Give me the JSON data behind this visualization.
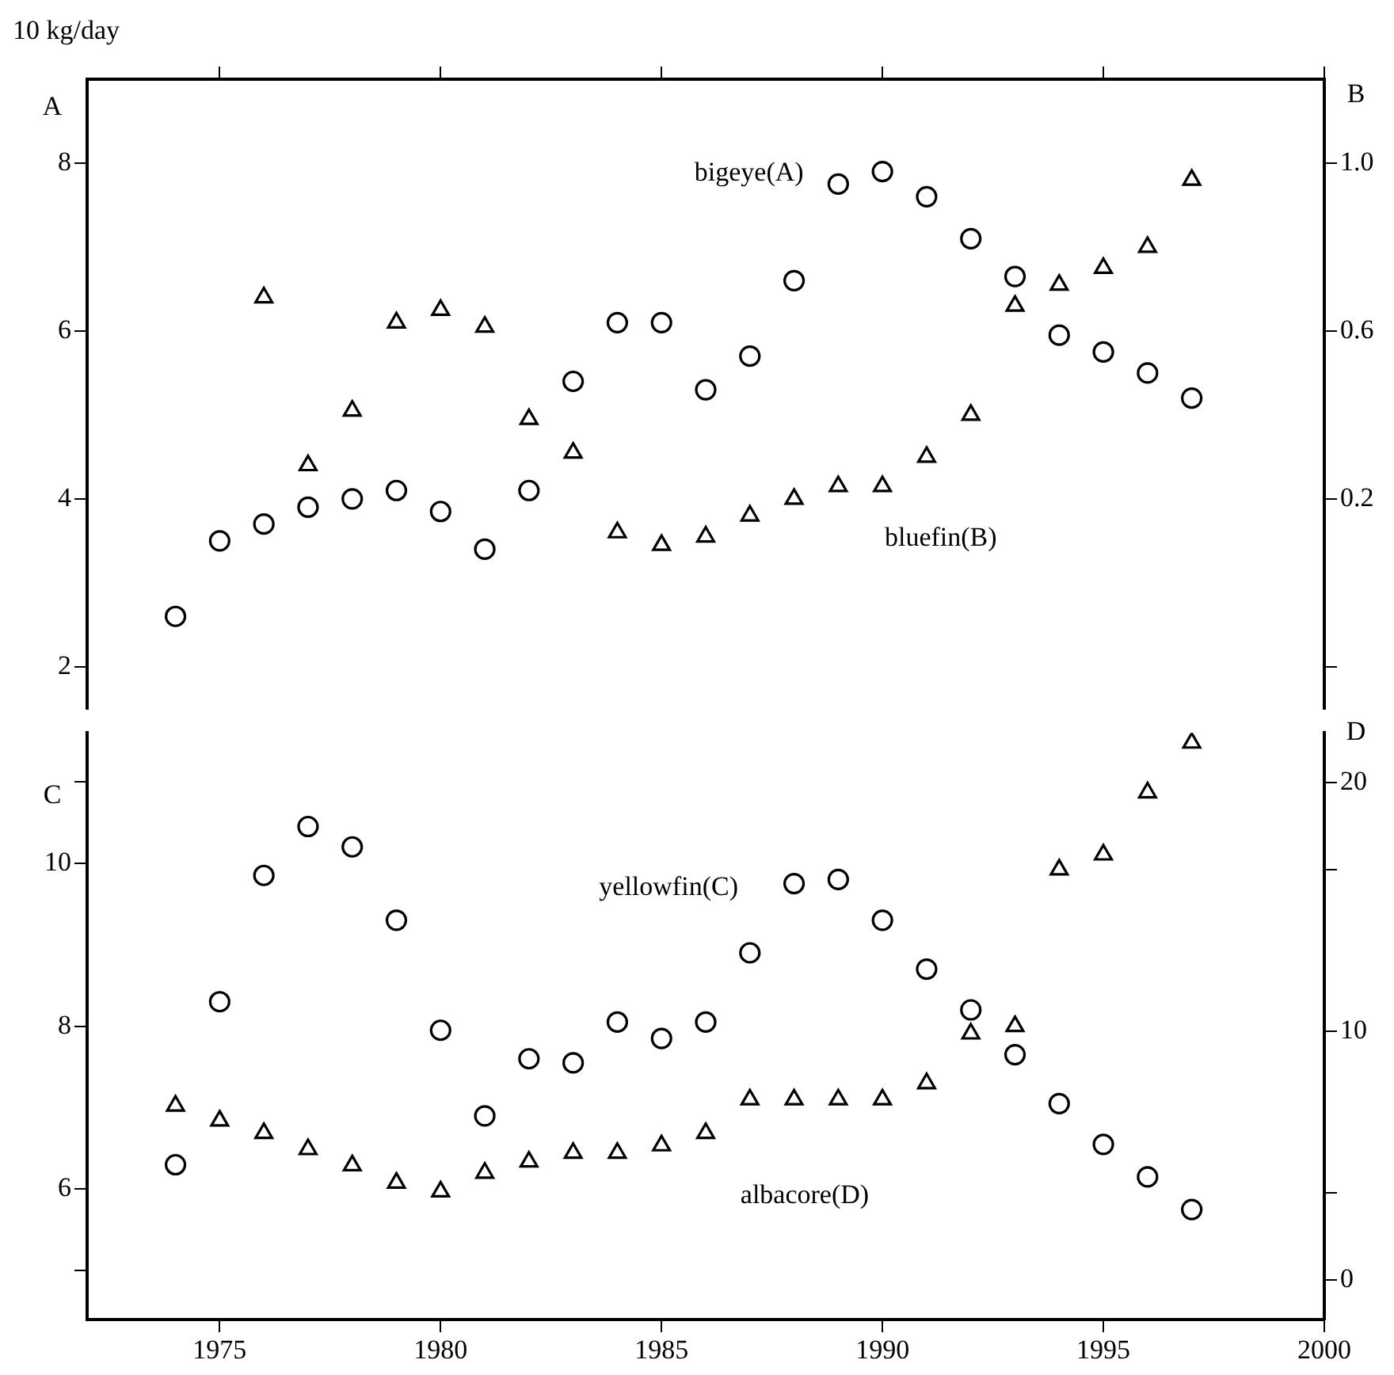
{
  "chart_data": [
    {
      "type": "scatter",
      "title": "10 kg/day",
      "ylabel": "A",
      "y2label": "B",
      "tick_labels": "y",
      "x": [
        1974,
        1975,
        1976,
        1977,
        1978,
        1979,
        1980,
        1981,
        1982,
        1983,
        1984,
        1985,
        1986,
        1987,
        1988,
        1989,
        1990,
        1991,
        1992,
        1993,
        1994,
        1995,
        1996,
        1997
      ],
      "xlim": [
        1972,
        2000
      ],
      "xticks": [
        1975,
        1980,
        1985,
        1990,
        1995,
        2000
      ],
      "ylim": [
        1.5,
        9
      ],
      "yticks": [
        2,
        4,
        6,
        8
      ],
      "y2lim": [
        -0.3,
        1.2
      ],
      "y2ticks": [
        {
          "value": -0.2,
          "label": null
        },
        0.2,
        0.6,
        {
          "value": 1,
          "label": "1.0"
        }
      ],
      "series": [
        {
          "name": "bigeye(A)",
          "color": "#000000",
          "marker": "circle",
          "values": [
            2.6,
            3.5,
            3.7,
            3.9,
            4.0,
            4.1,
            3.85,
            3.4,
            4.1,
            5.4,
            6.1,
            6.1,
            5.3,
            5.7,
            6.6,
            7.75,
            7.9,
            7.6,
            7.1,
            6.65,
            5.95,
            5.75,
            5.5,
            5.2
          ]
        },
        {
          "name": "bluefin(B)",
          "color": "#000000",
          "marker": "triangle",
          "axis": "y2",
          "values": [
            null,
            null,
            0.68,
            0.28,
            0.41,
            0.62,
            0.65,
            0.61,
            0.39,
            0.31,
            0.12,
            0.09,
            0.11,
            0.16,
            0.2,
            0.23,
            0.23,
            0.3,
            0.4,
            0.66,
            0.71,
            0.75,
            0.8,
            0.96
          ]
        }
      ]
    },
    {
      "type": "scatter",
      "ylabel": "C",
      "y2label": "D",
      "x": [
        1974,
        1975,
        1976,
        1977,
        1978,
        1979,
        1980,
        1981,
        1982,
        1983,
        1984,
        1985,
        1986,
        1987,
        1988,
        1989,
        1990,
        1991,
        1992,
        1993,
        1994,
        1995,
        1996,
        1997
      ],
      "xlim": [
        1972,
        2000
      ],
      "xticks": [
        1975,
        1980,
        1985,
        1990,
        1995,
        2000
      ],
      "ylim": [
        4.4,
        11.6
      ],
      "yticks": [
        {
          "value": 5,
          "label": null
        },
        6,
        8,
        10,
        {
          "value": 11,
          "label": null
        }
      ],
      "y2lim": [
        -1.6,
        22
      ],
      "y2ticks": [
        0,
        {
          "value": 3.5,
          "label": null
        },
        10,
        {
          "value": 16.5,
          "label": null
        },
        20
      ],
      "series": [
        {
          "name": "yellowfin(C)",
          "color": "#000000",
          "marker": "circle",
          "values": [
            6.3,
            8.3,
            9.85,
            10.45,
            10.2,
            9.3,
            7.95,
            6.9,
            7.6,
            7.55,
            8.05,
            7.85,
            8.05,
            8.9,
            9.75,
            9.8,
            9.3,
            8.7,
            8.2,
            7.65,
            7.05,
            6.55,
            6.15,
            5.75
          ]
        },
        {
          "name": "albacore(D)",
          "color": "#000000",
          "marker": "triangle",
          "axis": "y2",
          "values": [
            7.0,
            6.4,
            5.9,
            5.25,
            4.6,
            3.9,
            3.55,
            4.3,
            4.75,
            5.1,
            5.1,
            5.4,
            5.9,
            7.25,
            7.25,
            7.25,
            7.25,
            7.9,
            9.9,
            10.2,
            16.5,
            17.1,
            19.6,
            21.6
          ]
        }
      ]
    }
  ]
}
